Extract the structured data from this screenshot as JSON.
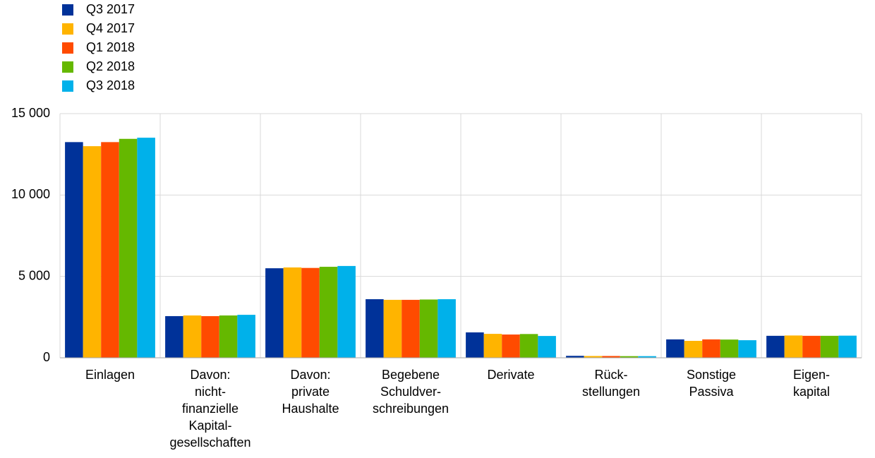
{
  "chart_data": {
    "type": "bar",
    "categories": [
      "Einlagen",
      "Davon:\nnicht-\nfinanzielle\nKapital-\ngesellschaften",
      "Davon:\nprivate\nHaushalte",
      "Begebene\nSchuldver-\nschreibungen",
      "Derivate",
      "Rück-\nstellungen",
      "Sonstige\nPassiva",
      "Eigen-\nkapital"
    ],
    "series": [
      {
        "name": "Q3 2017",
        "color": "#003299",
        "values": [
          13250,
          2560,
          5500,
          3600,
          1560,
          120,
          1130,
          1350
        ]
      },
      {
        "name": "Q4 2017",
        "color": "#ffb400",
        "values": [
          13000,
          2600,
          5550,
          3560,
          1470,
          110,
          1040,
          1370
        ]
      },
      {
        "name": "Q1 2018",
        "color": "#ff4b00",
        "values": [
          13250,
          2560,
          5520,
          3560,
          1430,
          110,
          1130,
          1350
        ]
      },
      {
        "name": "Q2 2018",
        "color": "#65b800",
        "values": [
          13450,
          2600,
          5590,
          3580,
          1460,
          100,
          1120,
          1350
        ]
      },
      {
        "name": "Q3 2018",
        "color": "#00b1ea",
        "values": [
          13520,
          2640,
          5640,
          3600,
          1340,
          100,
          1080,
          1360
        ]
      }
    ],
    "ylim": [
      0,
      15000
    ],
    "yticks": [
      0,
      {
        "value": 5000,
        "label": "5 000"
      },
      {
        "value": 10000,
        "label": "10 000"
      },
      {
        "value": 15000,
        "label": "15 000"
      }
    ],
    "grid": true
  }
}
